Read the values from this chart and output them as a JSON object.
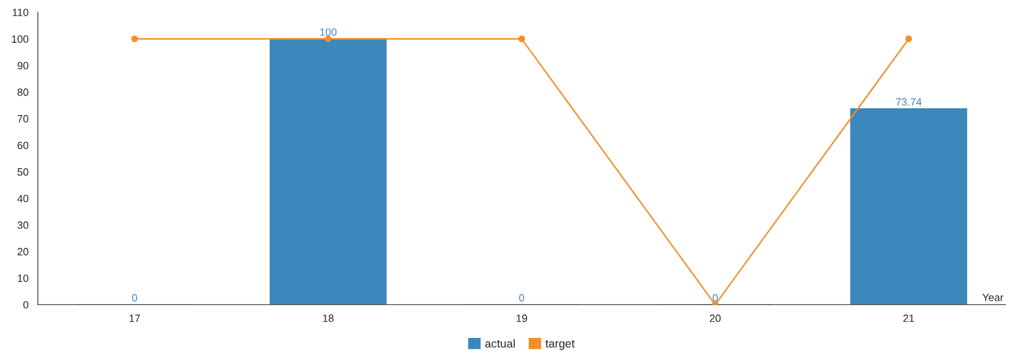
{
  "chart_data": {
    "type": "bar",
    "xlabel": "Year",
    "categories": [
      "17",
      "18",
      "19",
      "20",
      "21"
    ],
    "series": [
      {
        "name": "actual",
        "color": "#3b88bc",
        "values": [
          0,
          100,
          0,
          0,
          73.74
        ],
        "value_labels": [
          "0",
          "100",
          "0",
          "0",
          "73.74"
        ]
      },
      {
        "name": "target",
        "type": "line",
        "color": "#f28e2c",
        "values": [
          100,
          100,
          100,
          0,
          100
        ],
        "marker": "circle"
      }
    ],
    "ylim": [
      0,
      110
    ],
    "yticks": [
      0,
      10,
      20,
      30,
      40,
      50,
      60,
      70,
      80,
      90,
      100,
      110
    ],
    "grid": false,
    "legend": "bottom"
  }
}
